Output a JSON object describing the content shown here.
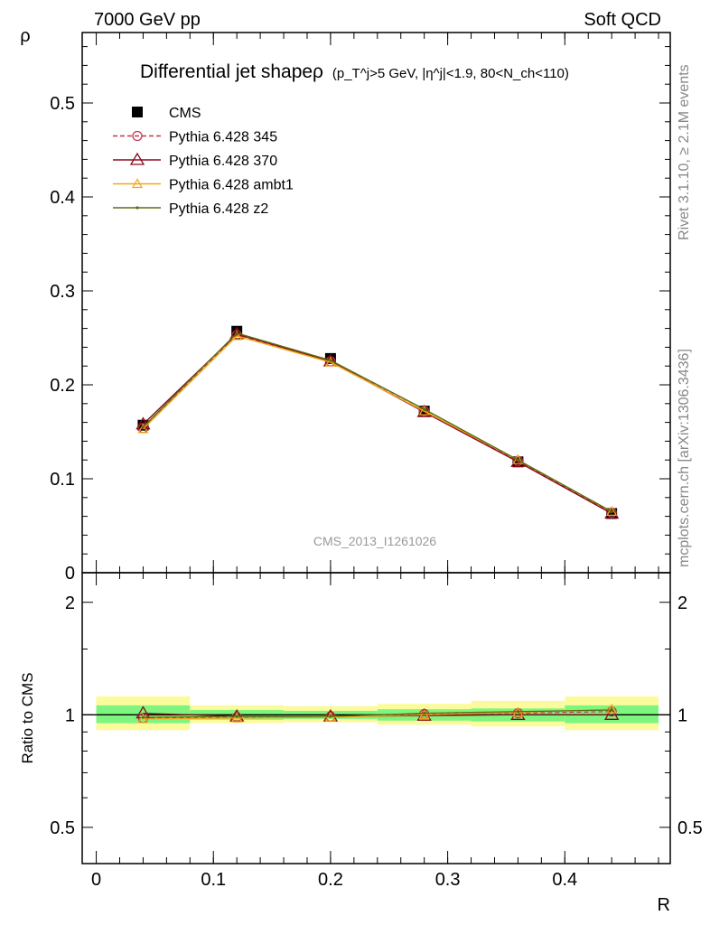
{
  "header": {
    "left": "7000 GeV pp",
    "right": "Soft QCD"
  },
  "title": {
    "main": "Differential jet shapeρ",
    "cuts": "(p_T^j>5 GeV, |η^j|<1.9, 80<N_ch<110)"
  },
  "side": {
    "rivet": "Rivet 3.1.10, ≥ 2.1M events",
    "mcplots": "mcplots.cern.ch [arXiv:1306.3436]"
  },
  "reference": "CMS_2013_I1261026",
  "chart_data": [
    {
      "type": "line",
      "title": "Differential jet shapeρ",
      "xlabel": "R",
      "ylabel": "ρ",
      "xlim": [
        -0.012,
        0.49
      ],
      "ylim": [
        0,
        0.575
      ],
      "x": [
        0.04,
        0.12,
        0.2,
        0.28,
        0.36,
        0.44
      ],
      "x_bins": [
        [
          0.0,
          0.08
        ],
        [
          0.08,
          0.16
        ],
        [
          0.16,
          0.24
        ],
        [
          0.24,
          0.32
        ],
        [
          0.32,
          0.4
        ],
        [
          0.4,
          0.48
        ]
      ],
      "x_ticks": [
        "0",
        "0.1",
        "0.2",
        "0.3",
        "0.4"
      ],
      "y_ticks": [
        "0",
        "0.1",
        "0.2",
        "0.3",
        "0.4",
        "0.5"
      ],
      "legend_position": "top-left",
      "series": [
        {
          "name": "CMS",
          "color": "#000000",
          "marker": "filled-square",
          "values": [
            0.157,
            0.257,
            0.228,
            0.172,
            0.118,
            0.063
          ]
        },
        {
          "name": "Pythia 6.428 345",
          "color": "#c0384f",
          "marker": "open-circle",
          "dashed": true,
          "values": [
            0.154,
            0.253,
            0.225,
            0.172,
            0.119,
            0.064
          ]
        },
        {
          "name": "Pythia 6.428 370",
          "color": "#8b0a1a",
          "marker": "open-triangle",
          "values": [
            0.158,
            0.254,
            0.225,
            0.171,
            0.118,
            0.063
          ]
        },
        {
          "name": "Pythia 6.428 ambt1",
          "color": "#f2a51a",
          "marker": "open-triangle-small",
          "values": [
            0.153,
            0.252,
            0.224,
            0.172,
            0.12,
            0.065
          ]
        },
        {
          "name": "Pythia 6.428 z2",
          "color": "#5a6e10",
          "marker": "dot",
          "values": [
            0.155,
            0.255,
            0.226,
            0.174,
            0.12,
            0.065
          ]
        }
      ]
    },
    {
      "type": "line",
      "ylabel": "Ratio to CMS",
      "xlabel": "R",
      "scale": "log",
      "ylim": [
        0.4,
        2.4
      ],
      "y_ticks": [
        "0.5",
        "1",
        "2"
      ],
      "uncertainty_bands": {
        "stat_color": "#7ef57e",
        "total_color": "#fbfb9d",
        "stat": [
          [
            0.95,
            1.06
          ],
          [
            0.97,
            1.03
          ],
          [
            0.975,
            1.025
          ],
          [
            0.965,
            1.035
          ],
          [
            0.96,
            1.04
          ],
          [
            0.95,
            1.06
          ]
        ],
        "total": [
          [
            0.91,
            1.12
          ],
          [
            0.95,
            1.06
          ],
          [
            0.955,
            1.055
          ],
          [
            0.94,
            1.07
          ],
          [
            0.93,
            1.09
          ],
          [
            0.91,
            1.12
          ]
        ]
      },
      "series": [
        {
          "name": "Pythia 6.428 345",
          "values": [
            0.98,
            0.985,
            0.99,
            1.005,
            1.01,
            1.02
          ]
        },
        {
          "name": "Pythia 6.428 370",
          "values": [
            1.01,
            0.99,
            0.99,
            0.995,
            1.0,
            1.0
          ]
        },
        {
          "name": "Pythia 6.428 ambt1",
          "values": [
            0.975,
            0.98,
            0.985,
            1.0,
            1.015,
            1.035
          ]
        },
        {
          "name": "Pythia 6.428 z2",
          "values": [
            0.985,
            0.99,
            0.99,
            1.01,
            1.02,
            1.03
          ]
        }
      ]
    }
  ]
}
